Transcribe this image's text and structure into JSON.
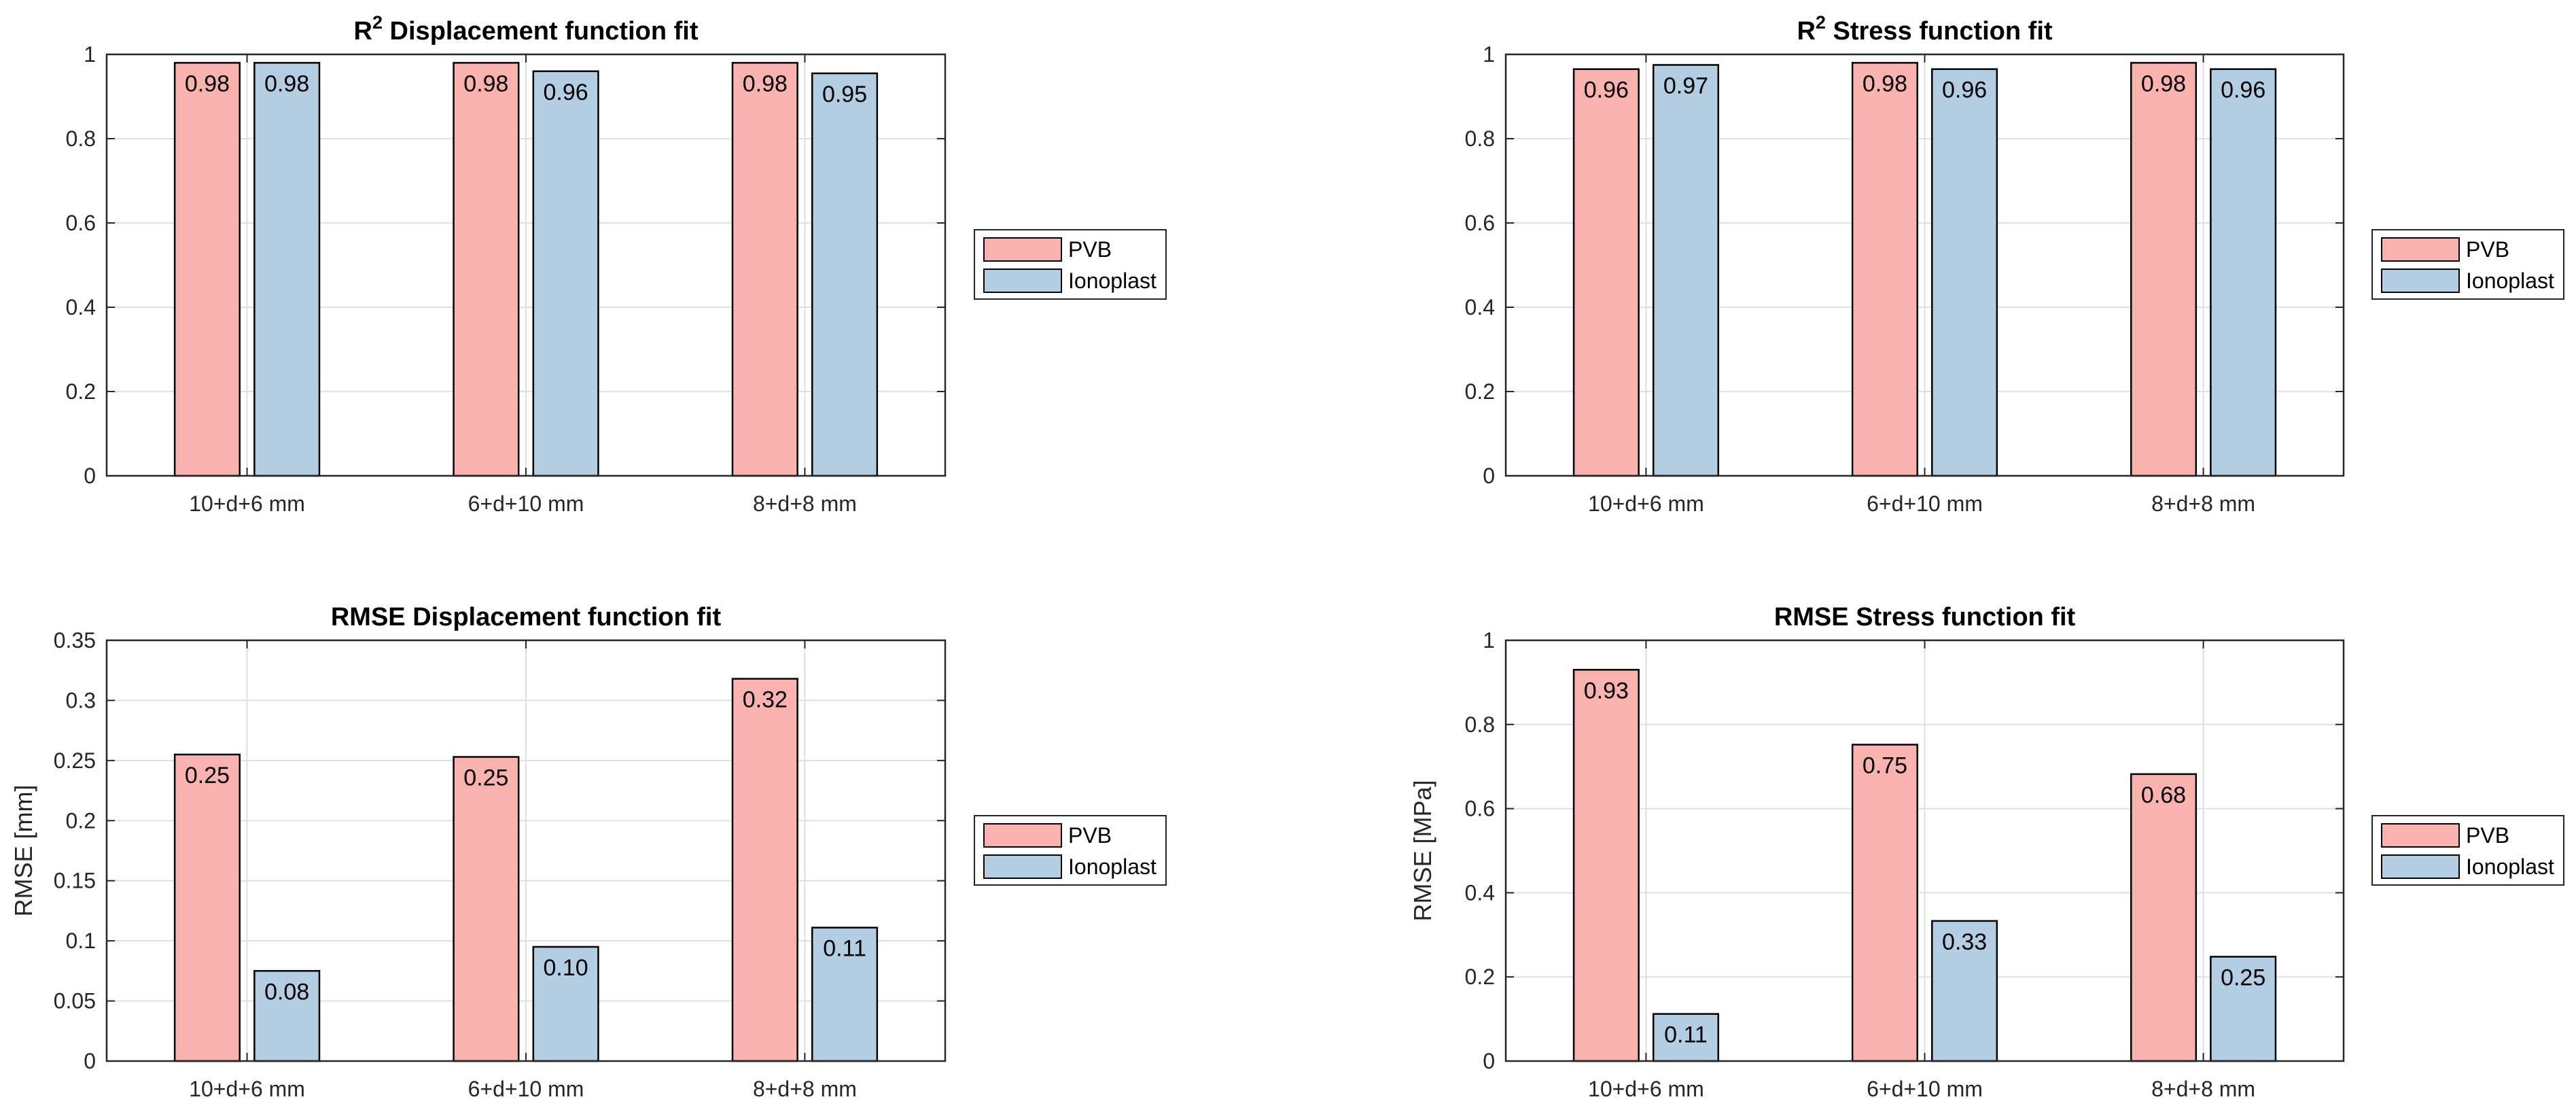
{
  "colors": {
    "pvb": "#F9B2AE",
    "ionoplast": "#B3CDE3",
    "edge": "#000000",
    "grid": "#DFDFDF"
  },
  "chart_data": [
    {
      "type": "bar",
      "title": "R",
      "title_sup": "2",
      "title_rest": " Displacement function fit",
      "ylabel": "",
      "categories": [
        "10+d+6 mm",
        "6+d+10 mm",
        "8+d+8 mm"
      ],
      "ylim": [
        0,
        1
      ],
      "yticks": [
        "0",
        "0.2",
        "0.4",
        "0.6",
        "0.8",
        "1"
      ],
      "ytick_values": [
        0,
        0.2,
        0.4,
        0.6,
        0.8,
        1
      ],
      "grid": true,
      "legend_position": "right",
      "series": [
        {
          "name": "PVB",
          "values": [
            0.98,
            0.98,
            0.98
          ],
          "labels": [
            "0.98",
            "0.98",
            "0.98"
          ]
        },
        {
          "name": "Ionoplast",
          "values": [
            0.98,
            0.96,
            0.955
          ],
          "labels": [
            "0.98",
            "0.96",
            "0.95"
          ]
        }
      ]
    },
    {
      "type": "bar",
      "title": "R",
      "title_sup": "2",
      "title_rest": " Stress function fit",
      "ylabel": "",
      "categories": [
        "10+d+6 mm",
        "6+d+10 mm",
        "8+d+8 mm"
      ],
      "ylim": [
        0,
        1
      ],
      "yticks": [
        "0",
        "0.2",
        "0.4",
        "0.6",
        "0.8",
        "1"
      ],
      "ytick_values": [
        0,
        0.2,
        0.4,
        0.6,
        0.8,
        1
      ],
      "grid": true,
      "legend_position": "right",
      "series": [
        {
          "name": "PVB",
          "values": [
            0.965,
            0.98,
            0.98
          ],
          "labels": [
            "0.96",
            "0.98",
            "0.98"
          ]
        },
        {
          "name": "Ionoplast",
          "values": [
            0.975,
            0.965,
            0.965
          ],
          "labels": [
            "0.97",
            "0.96",
            "0.96"
          ]
        }
      ]
    },
    {
      "type": "bar",
      "title": "RMSE Displacement function fit",
      "title_sup": "",
      "title_rest": "",
      "ylabel": "RMSE [mm]",
      "categories": [
        "10+d+6 mm",
        "6+d+10 mm",
        "8+d+8 mm"
      ],
      "ylim": [
        0,
        0.35
      ],
      "yticks": [
        "0",
        "0.05",
        "0.1",
        "0.15",
        "0.2",
        "0.25",
        "0.3",
        "0.35"
      ],
      "ytick_values": [
        0,
        0.05,
        0.1,
        0.15,
        0.2,
        0.25,
        0.3,
        0.35
      ],
      "grid": true,
      "legend_position": "right",
      "series": [
        {
          "name": "PVB",
          "values": [
            0.255,
            0.253,
            0.318
          ],
          "labels": [
            "0.25",
            "0.25",
            "0.32"
          ]
        },
        {
          "name": "Ionoplast",
          "values": [
            0.075,
            0.095,
            0.111
          ],
          "labels": [
            "0.08",
            "0.10",
            "0.11"
          ]
        }
      ]
    },
    {
      "type": "bar",
      "title": "RMSE Stress function fit",
      "title_sup": "",
      "title_rest": "",
      "ylabel": "RMSE [MPa]",
      "categories": [
        "10+d+6 mm",
        "6+d+10 mm",
        "8+d+8 mm"
      ],
      "ylim": [
        0,
        1
      ],
      "yticks": [
        "0",
        "0.2",
        "0.4",
        "0.6",
        "0.8",
        "1"
      ],
      "ytick_values": [
        0,
        0.2,
        0.4,
        0.6,
        0.8,
        1
      ],
      "grid": true,
      "legend_position": "right",
      "series": [
        {
          "name": "PVB",
          "values": [
            0.93,
            0.752,
            0.682
          ],
          "labels": [
            "0.93",
            "0.75",
            "0.68"
          ]
        },
        {
          "name": "Ionoplast",
          "values": [
            0.112,
            0.333,
            0.248
          ],
          "labels": [
            "0.11",
            "0.33",
            "0.25"
          ]
        }
      ]
    }
  ]
}
